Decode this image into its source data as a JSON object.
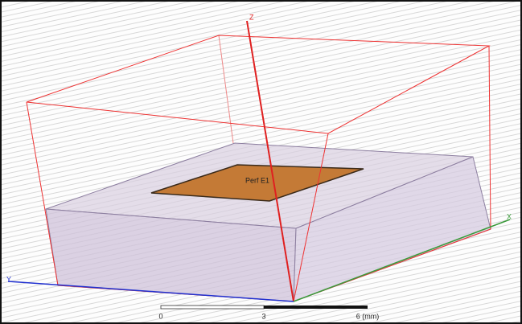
{
  "viewport": {
    "axes": {
      "z": "Z",
      "x": "X",
      "y": "Y"
    },
    "patch_label": "Perf E1",
    "scale_bar": {
      "labels": [
        "0",
        "3",
        "6 (mm)"
      ]
    }
  }
}
